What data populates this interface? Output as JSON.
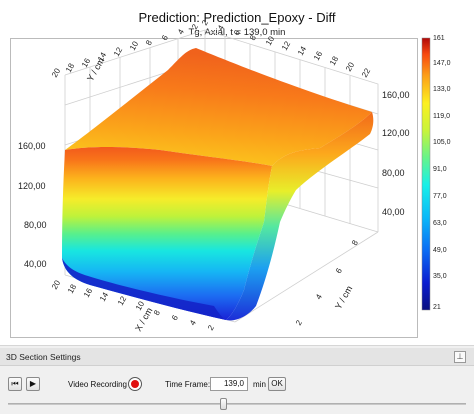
{
  "window": {
    "title": "Prediction: Prediction_Epoxy - Diff",
    "subtitle": "Tg, Axial, t = 139,0 min"
  },
  "plot3d": {
    "y_axis_label": "Y / cm",
    "x_axis_label": "X / cm",
    "left_ticks": [
      "160,00",
      "120,00",
      "80,00",
      "40,00"
    ],
    "right_ticks": [
      "160,00",
      "120,00",
      "80,00",
      "40,00"
    ],
    "top_y_ticks": [
      "2",
      "4",
      "6",
      "8",
      "10",
      "12",
      "14",
      "16",
      "18",
      "20",
      "22"
    ],
    "left_x_ticks": [
      "2",
      "4",
      "6",
      "8",
      "10",
      "12",
      "14",
      "16",
      "18",
      "20"
    ],
    "bottom_x_ticks": [
      "2",
      "4",
      "6",
      "8",
      "10",
      "12",
      "14",
      "16",
      "18",
      "20",
      "22"
    ],
    "right_y_ticks": [
      "2",
      "4",
      "6",
      "8"
    ]
  },
  "colorbar": {
    "labels": [
      "161",
      "147,0",
      "133,0",
      "119,0",
      "105,0",
      "91,0",
      "77,0",
      "63,0",
      "49,0",
      "35,0",
      "21"
    ],
    "min": 21,
    "max": 161
  },
  "panel": {
    "title": "3D Section Settings",
    "pin_icon": "pin-icon",
    "video_label": "Video Recording",
    "time_frame_label": "Time Frame:",
    "time_value": "139,0",
    "unit": "min",
    "ok_label": "OK",
    "slider_value": 0.47
  }
}
